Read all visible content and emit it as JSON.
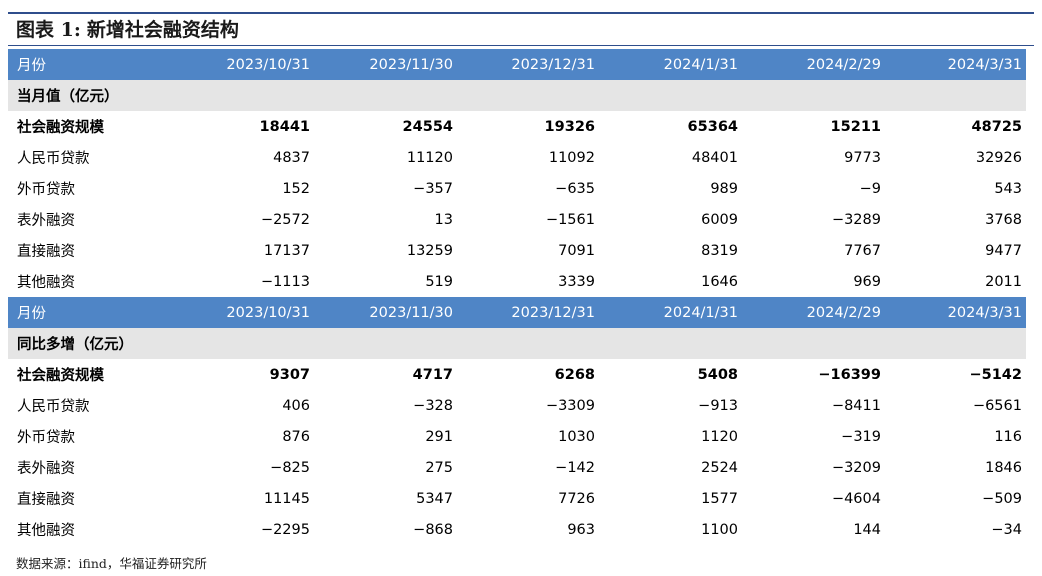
{
  "header": {
    "title_prefix": "图表 1:",
    "title": "新增社会融资结构"
  },
  "table": {
    "sections": [
      {
        "header_label": "月份",
        "columns": [
          "2023/10/31",
          "2023/11/30",
          "2023/12/31",
          "2024/1/31",
          "2024/2/29",
          "2024/3/31"
        ],
        "group_label": "当月值（亿元）",
        "rows": [
          {
            "label": "社会融资规模",
            "values": [
              "18441",
              "24554",
              "19326",
              "65364",
              "15211",
              "48725"
            ],
            "bold": true
          },
          {
            "label": "人民币贷款",
            "values": [
              "4837",
              "11120",
              "11092",
              "48401",
              "9773",
              "32926"
            ]
          },
          {
            "label": "外币贷款",
            "values": [
              "152",
              "−357",
              "−635",
              "989",
              "−9",
              "543"
            ]
          },
          {
            "label": "表外融资",
            "values": [
              "−2572",
              "13",
              "−1561",
              "6009",
              "−3289",
              "3768"
            ]
          },
          {
            "label": "直接融资",
            "values": [
              "17137",
              "13259",
              "7091",
              "8319",
              "7767",
              "9477"
            ]
          },
          {
            "label": "其他融资",
            "values": [
              "−1113",
              "519",
              "3339",
              "1646",
              "969",
              "2011"
            ]
          }
        ]
      },
      {
        "header_label": "月份",
        "columns": [
          "2023/10/31",
          "2023/11/30",
          "2023/12/31",
          "2024/1/31",
          "2024/2/29",
          "2024/3/31"
        ],
        "group_label": "同比多增（亿元）",
        "rows": [
          {
            "label": "社会融资规模",
            "values": [
              "9307",
              "4717",
              "6268",
              "5408",
              "−16399",
              "−5142"
            ],
            "bold": true
          },
          {
            "label": "人民币贷款",
            "values": [
              "406",
              "−328",
              "−3309",
              "−913",
              "−8411",
              "−6561"
            ]
          },
          {
            "label": "外币贷款",
            "values": [
              "876",
              "291",
              "1030",
              "1120",
              "−319",
              "116"
            ]
          },
          {
            "label": "表外融资",
            "values": [
              "−825",
              "275",
              "−142",
              "2524",
              "−3209",
              "1846"
            ]
          },
          {
            "label": "直接融资",
            "values": [
              "11145",
              "5347",
              "7726",
              "1577",
              "−4604",
              "−509"
            ]
          },
          {
            "label": "其他融资",
            "values": [
              "−2295",
              "−868",
              "963",
              "1100",
              "144",
              "−34"
            ]
          }
        ]
      }
    ]
  },
  "footer": {
    "source": "数据来源：ifind，华福证券研究所"
  },
  "colors": {
    "header_bg": "#4f85c6",
    "group_bg": "#e5e5e5",
    "rule": "#2f4e8c"
  }
}
